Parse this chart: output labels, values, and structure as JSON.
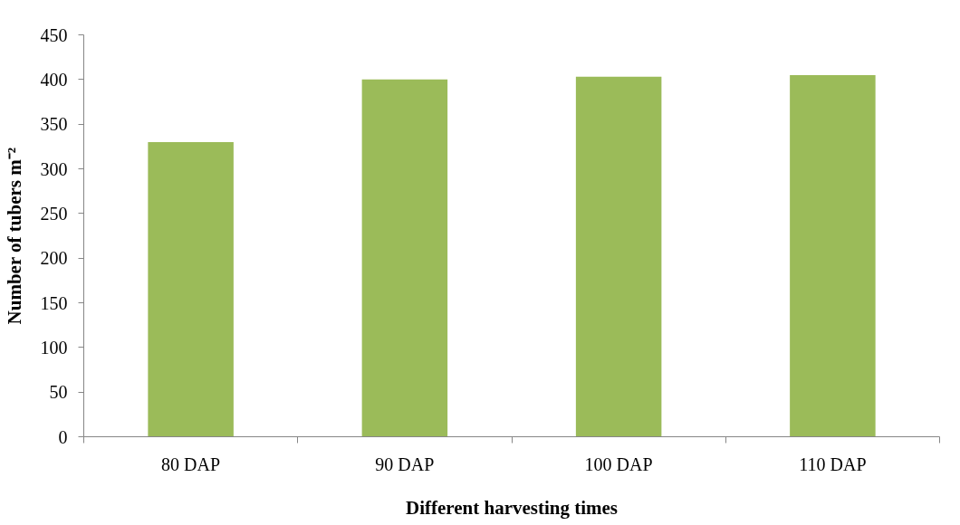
{
  "chart_data": {
    "type": "bar",
    "xlabel": "Different harvesting times",
    "ylabel": "Number of tubers m⁻²",
    "categories": [
      "80 DAP",
      "90 DAP",
      "100 DAP",
      "110 DAP"
    ],
    "values": [
      330,
      400,
      403,
      405
    ],
    "color": "#9bbb59",
    "ylim": [
      0,
      450
    ],
    "yticks": [
      0,
      50,
      100,
      150,
      200,
      250,
      300,
      350,
      400,
      450
    ],
    "grid": false
  }
}
